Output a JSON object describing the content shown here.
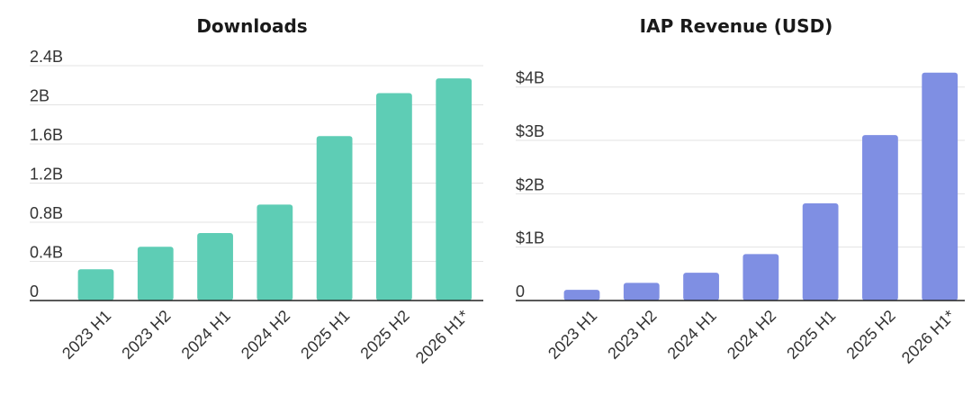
{
  "chart_data": [
    {
      "type": "bar",
      "title": "Downloads",
      "categories": [
        "2023 H1",
        "2023 H2",
        "2024 H1",
        "2024 H2",
        "2025 H1",
        "2025 H2",
        "2026 H1*"
      ],
      "values": [
        0.32,
        0.55,
        0.69,
        0.98,
        1.68,
        2.12,
        2.27
      ],
      "unit": "B",
      "ylim": [
        0,
        2.4
      ],
      "yticks": [
        0,
        0.4,
        0.8,
        1.2,
        1.6,
        2,
        2.4
      ],
      "ytick_labels": [
        "0",
        "0.4B",
        "0.8B",
        "1.2B",
        "1.6B",
        "2B",
        "2.4B"
      ],
      "color": "#5ecdb5",
      "grid": true,
      "xlabel": "",
      "ylabel": ""
    },
    {
      "type": "bar",
      "title": "IAP Revenue (USD)",
      "categories": [
        "2023 H1",
        "2023 H2",
        "2024 H1",
        "2024 H2",
        "2025 H1",
        "2025 H2",
        "2026 H1*"
      ],
      "values": [
        0.2,
        0.33,
        0.52,
        0.87,
        1.82,
        3.1,
        4.27
      ],
      "unit": "$B",
      "ylim": [
        0,
        4.4
      ],
      "yticks": [
        0,
        1,
        2,
        3,
        4
      ],
      "ytick_labels": [
        "0",
        "$1B",
        "$2B",
        "$3B",
        "$4B"
      ],
      "color": "#7f8fe3",
      "grid": true,
      "xlabel": "",
      "ylabel": ""
    }
  ]
}
